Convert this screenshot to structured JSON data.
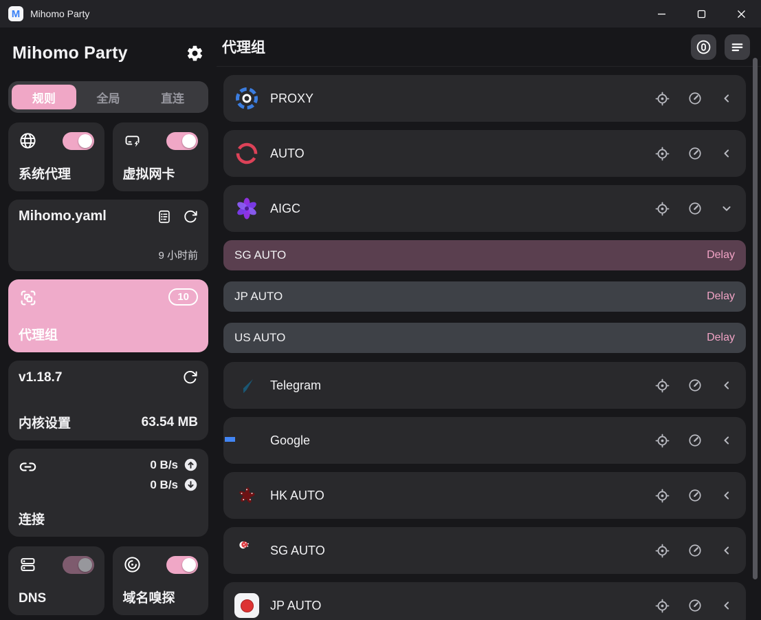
{
  "colors": {
    "accent_pink": "#f0a7c6",
    "delay_pink": "#f1a3c5",
    "selected_item_bg": "#5a3f4f",
    "card_bg": "#2a2a2d",
    "item_bg": "#3e4147",
    "titlebar_bg": "#232327"
  },
  "titlebar": {
    "title": "Mihomo Party",
    "app_initial": "M"
  },
  "sidebar": {
    "brand": "Mihomo Party",
    "mode_tabs": [
      {
        "label": "规则",
        "active": true
      },
      {
        "label": "全局",
        "active": false
      },
      {
        "label": "直连",
        "active": false
      }
    ],
    "system_proxy": {
      "label": "系统代理",
      "on": true
    },
    "tun": {
      "label": "虚拟网卡",
      "on": true
    },
    "profile": {
      "name": "Mihomo.yaml",
      "updated": "9 小时前"
    },
    "groups_card": {
      "label": "代理组",
      "badge": "10"
    },
    "core": {
      "version": "v1.18.7",
      "label": "内核设置",
      "memory": "63.54 MB"
    },
    "connections": {
      "label": "连接",
      "upload": "0 B/s",
      "download": "0 B/s"
    },
    "dns": {
      "label": "DNS",
      "on": true,
      "dimmed": true
    },
    "sniff": {
      "label": "域名嗅探",
      "on": true
    }
  },
  "main": {
    "title": "代理组",
    "groups": [
      {
        "name": "PROXY",
        "icon": "proxy-logo",
        "expanded": false
      },
      {
        "name": "AUTO",
        "icon": "auto-logo",
        "expanded": false
      },
      {
        "name": "AIGC",
        "icon": "aigc-logo",
        "expanded": true,
        "items": [
          {
            "name": "SG AUTO",
            "delay_label": "Delay",
            "selected": true
          },
          {
            "name": "JP AUTO",
            "delay_label": "Delay",
            "selected": false
          },
          {
            "name": "US AUTO",
            "delay_label": "Delay",
            "selected": false
          }
        ]
      },
      {
        "name": "Telegram",
        "icon": "telegram-logo",
        "expanded": false
      },
      {
        "name": "Google",
        "icon": "google-logo",
        "expanded": false
      },
      {
        "name": "HK AUTO",
        "icon": "flag-hk",
        "expanded": false
      },
      {
        "name": "SG AUTO",
        "icon": "flag-sg",
        "expanded": false
      },
      {
        "name": "JP AUTO",
        "icon": "flag-jp",
        "expanded": false
      }
    ]
  }
}
